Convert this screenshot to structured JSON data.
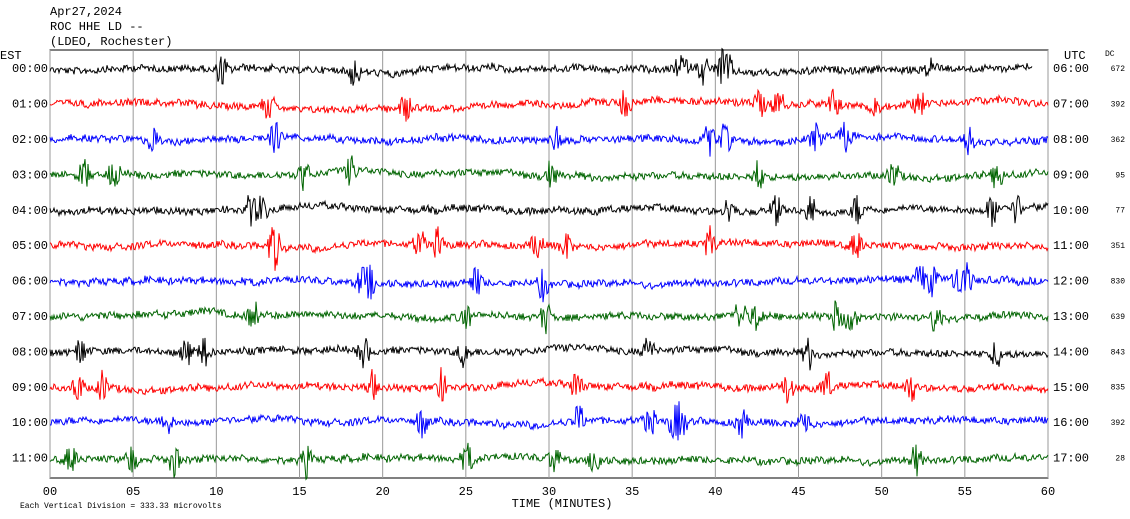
{
  "header": {
    "date": "Apr27,2024",
    "station": "ROC HHE LD --",
    "network": "(LDEO, Rochester)"
  },
  "left_axis_title": "EST",
  "right_axis_title": "UTC",
  "dc_title": "DC",
  "rows": [
    {
      "est": "00:00",
      "utc": "06:00",
      "dc": "672",
      "color": "#000000"
    },
    {
      "est": "01:00",
      "utc": "07:00",
      "dc": "392",
      "color": "#ff0000"
    },
    {
      "est": "02:00",
      "utc": "08:00",
      "dc": "362",
      "color": "#0000ff"
    },
    {
      "est": "03:00",
      "utc": "09:00",
      "dc": "95",
      "color": "#006400"
    },
    {
      "est": "04:00",
      "utc": "10:00",
      "dc": "77",
      "color": "#000000"
    },
    {
      "est": "05:00",
      "utc": "11:00",
      "dc": "351",
      "color": "#ff0000"
    },
    {
      "est": "06:00",
      "utc": "12:00",
      "dc": "830",
      "color": "#0000ff"
    },
    {
      "est": "07:00",
      "utc": "13:00",
      "dc": "639",
      "color": "#006400"
    },
    {
      "est": "08:00",
      "utc": "14:00",
      "dc": "843",
      "color": "#000000"
    },
    {
      "est": "09:00",
      "utc": "15:00",
      "dc": "835",
      "color": "#ff0000"
    },
    {
      "est": "10:00",
      "utc": "16:00",
      "dc": "392",
      "color": "#0000ff"
    },
    {
      "est": "11:00",
      "utc": "17:00",
      "dc": "28",
      "color": "#006400"
    }
  ],
  "x_ticks": [
    "00",
    "05",
    "10",
    "15",
    "20",
    "25",
    "30",
    "35",
    "40",
    "45",
    "50",
    "55",
    "60"
  ],
  "x_label": "TIME (MINUTES)",
  "footer": "Each Vertical Division =  333.33 microvolts"
}
